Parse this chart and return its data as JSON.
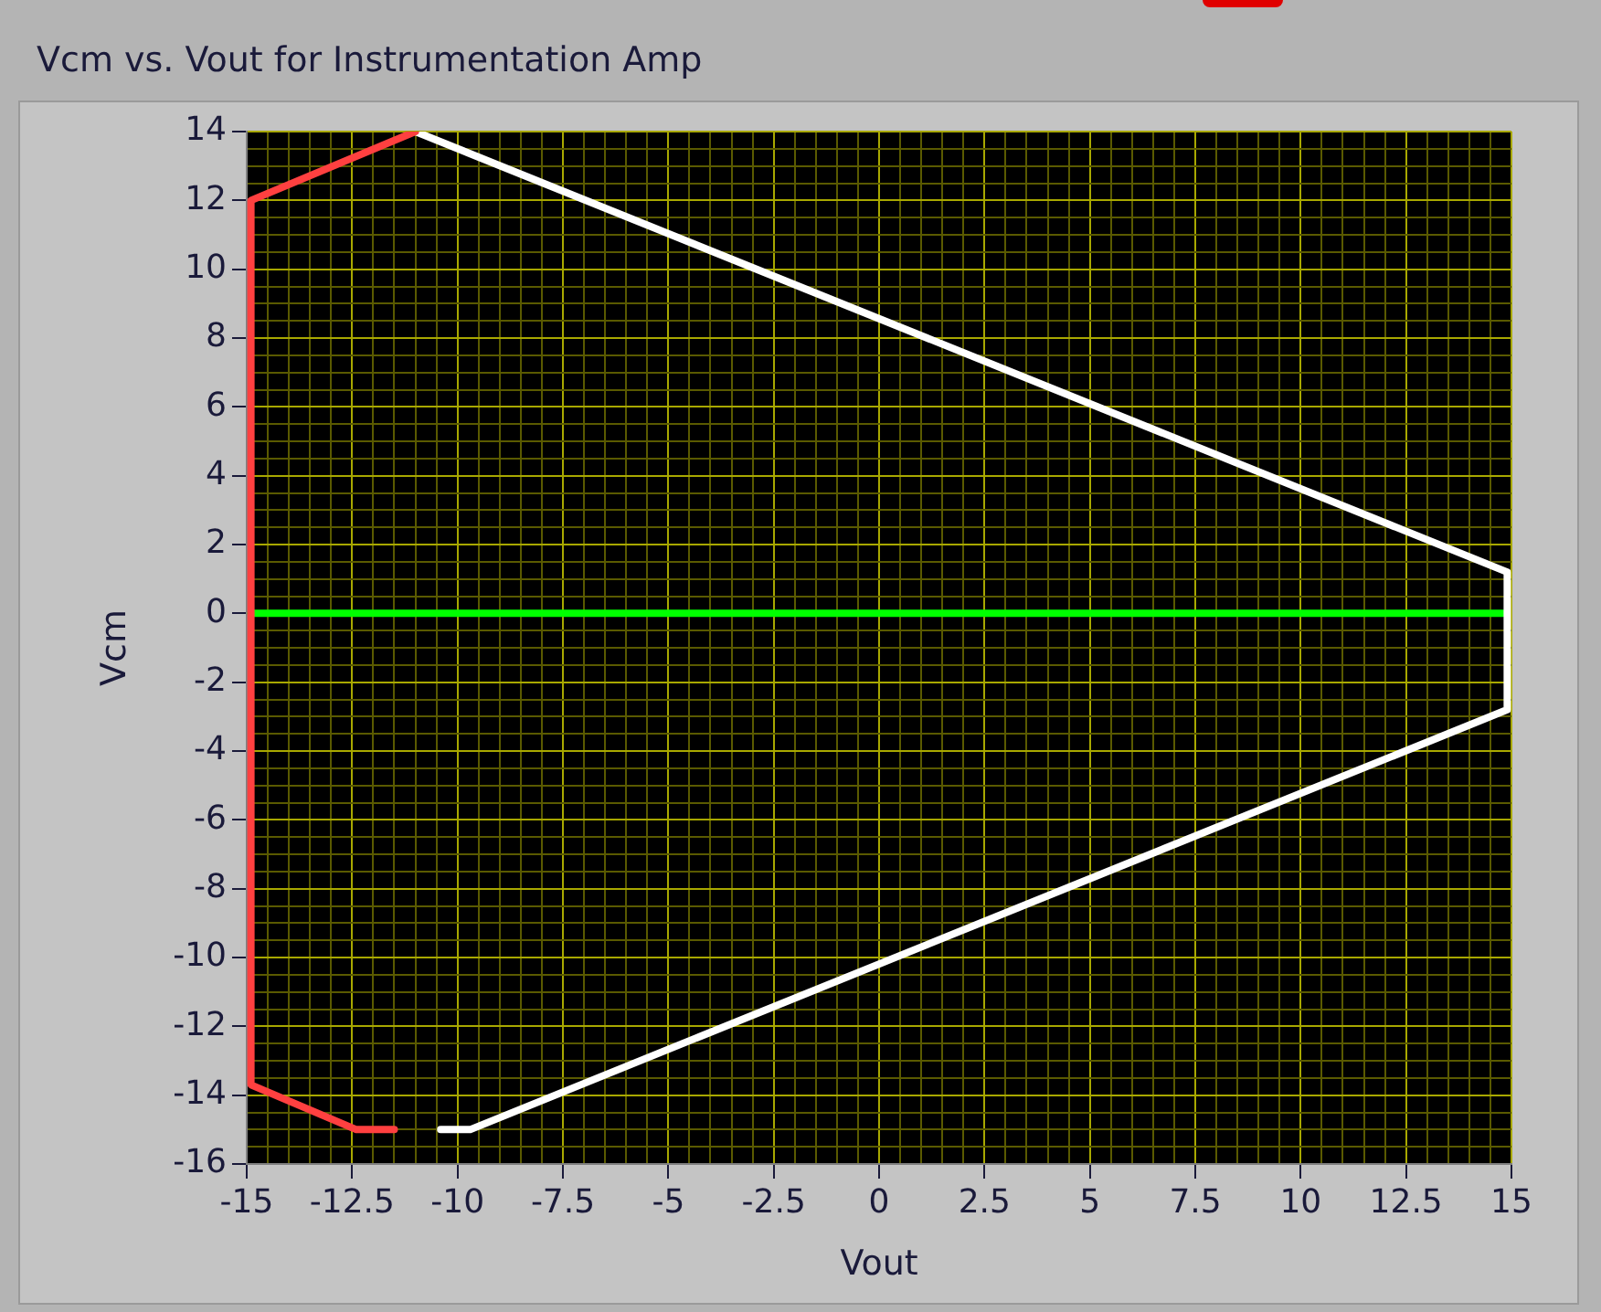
{
  "chart_data": {
    "type": "line",
    "title": "Vcm vs. Vout for Instrumentation Amp",
    "xlabel": "Vout",
    "ylabel": "Vcm",
    "series": [
      {
        "color": "#ff4040",
        "x": [
          -11.5,
          -12.4,
          -14.9,
          -14.9,
          -11.0
        ],
        "values": [
          -15,
          -15,
          -13.7,
          12,
          14
        ]
      },
      {
        "color": "#ffffff",
        "x": [
          -11.0,
          14.9,
          14.9,
          -9.7,
          -10.4
        ],
        "values": [
          14,
          1.2,
          -2.8,
          -15,
          -15
        ]
      },
      {
        "color": "#00ff00",
        "x": [
          -14.9,
          14.8
        ],
        "values": [
          0,
          0
        ]
      }
    ],
    "xlim": [
      -15,
      15
    ],
    "xticks": [
      -15,
      {
        "value": -14.5,
        "label": null
      },
      {
        "value": -14,
        "label": null
      },
      {
        "value": -13.5,
        "label": null
      },
      {
        "value": -13,
        "label": null
      },
      -12.5,
      {
        "value": -12,
        "label": null
      },
      {
        "value": -11.5,
        "label": null
      },
      {
        "value": -11,
        "label": null
      },
      {
        "value": -10.5,
        "label": null
      },
      -10,
      {
        "value": -9.5,
        "label": null
      },
      {
        "value": -9,
        "label": null
      },
      {
        "value": -8.5,
        "label": null
      },
      {
        "value": -8,
        "label": null
      },
      -7.5,
      {
        "value": -7,
        "label": null
      },
      {
        "value": -6.5,
        "label": null
      },
      {
        "value": -6,
        "label": null
      },
      {
        "value": -5.5,
        "label": null
      },
      -5,
      {
        "value": -4.5,
        "label": null
      },
      {
        "value": -4,
        "label": null
      },
      {
        "value": -3.5,
        "label": null
      },
      {
        "value": -3,
        "label": null
      },
      -2.5,
      {
        "value": -2,
        "label": null
      },
      {
        "value": -1.5,
        "label": null
      },
      {
        "value": -1,
        "label": null
      },
      {
        "value": -0.5,
        "label": null
      },
      0,
      {
        "value": 0.5,
        "label": null
      },
      {
        "value": 1,
        "label": null
      },
      {
        "value": 1.5,
        "label": null
      },
      {
        "value": 2,
        "label": null
      },
      2.5,
      {
        "value": 3,
        "label": null
      },
      {
        "value": 3.5,
        "label": null
      },
      {
        "value": 4,
        "label": null
      },
      {
        "value": 4.5,
        "label": null
      },
      5,
      {
        "value": 5.5,
        "label": null
      },
      {
        "value": 6,
        "label": null
      },
      {
        "value": 6.5,
        "label": null
      },
      {
        "value": 7,
        "label": null
      },
      7.5,
      {
        "value": 8,
        "label": null
      },
      {
        "value": 8.5,
        "label": null
      },
      {
        "value": 9,
        "label": null
      },
      {
        "value": 9.5,
        "label": null
      },
      10,
      {
        "value": 10.5,
        "label": null
      },
      {
        "value": 11,
        "label": null
      },
      {
        "value": 11.5,
        "label": null
      },
      {
        "value": 12,
        "label": null
      },
      12.5,
      {
        "value": 13,
        "label": null
      },
      {
        "value": 13.5,
        "label": null
      },
      {
        "value": 14,
        "label": null
      },
      {
        "value": 14.5,
        "label": null
      },
      15
    ],
    "ylim": [
      -16,
      14
    ],
    "yticks": [
      -16,
      {
        "value": -15.5,
        "label": null
      },
      {
        "value": -15,
        "label": null
      },
      {
        "value": -14.5,
        "label": null
      },
      -14,
      {
        "value": -13.5,
        "label": null
      },
      {
        "value": -13,
        "label": null
      },
      {
        "value": -12.5,
        "label": null
      },
      -12,
      {
        "value": -11.5,
        "label": null
      },
      {
        "value": -11,
        "label": null
      },
      {
        "value": -10.5,
        "label": null
      },
      -10,
      {
        "value": -9.5,
        "label": null
      },
      {
        "value": -9,
        "label": null
      },
      {
        "value": -8.5,
        "label": null
      },
      -8,
      {
        "value": -7.5,
        "label": null
      },
      {
        "value": -7,
        "label": null
      },
      {
        "value": -6.5,
        "label": null
      },
      -6,
      {
        "value": -5.5,
        "label": null
      },
      {
        "value": -5,
        "label": null
      },
      {
        "value": -4.5,
        "label": null
      },
      -4,
      {
        "value": -3.5,
        "label": null
      },
      {
        "value": -3,
        "label": null
      },
      {
        "value": -2.5,
        "label": null
      },
      -2,
      {
        "value": -1.5,
        "label": null
      },
      {
        "value": -1,
        "label": null
      },
      {
        "value": -0.5,
        "label": null
      },
      0,
      {
        "value": 0.5,
        "label": null
      },
      {
        "value": 1,
        "label": null
      },
      {
        "value": 1.5,
        "label": null
      },
      2,
      {
        "value": 2.5,
        "label": null
      },
      {
        "value": 3,
        "label": null
      },
      {
        "value": 3.5,
        "label": null
      },
      4,
      {
        "value": 4.5,
        "label": null
      },
      {
        "value": 5,
        "label": null
      },
      {
        "value": 5.5,
        "label": null
      },
      6,
      {
        "value": 6.5,
        "label": null
      },
      {
        "value": 7,
        "label": null
      },
      {
        "value": 7.5,
        "label": null
      },
      8,
      {
        "value": 8.5,
        "label": null
      },
      {
        "value": 9,
        "label": null
      },
      {
        "value": 9.5,
        "label": null
      },
      10,
      {
        "value": 10.5,
        "label": null
      },
      {
        "value": 11,
        "label": null
      },
      {
        "value": 11.5,
        "label": null
      },
      12,
      {
        "value": 12.5,
        "label": null
      },
      {
        "value": 13,
        "label": null
      },
      {
        "value": 13.5,
        "label": null
      },
      14
    ],
    "grid": true,
    "legend": false,
    "marker": "none",
    "line_style": "solid"
  }
}
